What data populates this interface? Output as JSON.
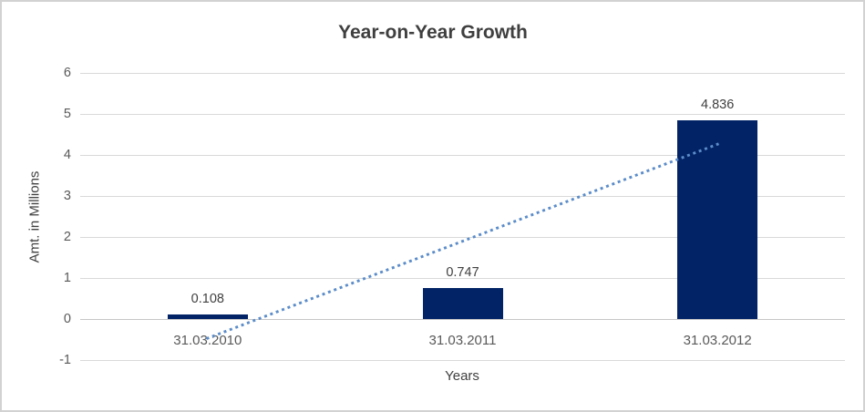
{
  "chart_data": {
    "type": "bar",
    "title": "Year-on-Year Growth",
    "categories": [
      "31.03.2010",
      "31.03.2011",
      "31.03.2012"
    ],
    "values": [
      0.108,
      0.747,
      4.836
    ],
    "data_labels": [
      "0.108",
      "0.747",
      "4.836"
    ],
    "xlabel": "Years",
    "ylabel": "Amt. in Millions",
    "ylim": [
      -1,
      6
    ],
    "ytick_step": 1,
    "ytick_labels": [
      "-1",
      "0",
      "1",
      "2",
      "3",
      "4",
      "5",
      "6"
    ],
    "grid": true,
    "legend": false,
    "bar_color": "#022366",
    "gridline_color": "#d9d9d9",
    "axis_text_color": "#595959",
    "title_color": "#3f3f3f",
    "trendline": {
      "type": "linear",
      "style": "dotted",
      "color": "#5b8cc9",
      "start_value": -0.467,
      "end_value": 4.261
    }
  }
}
